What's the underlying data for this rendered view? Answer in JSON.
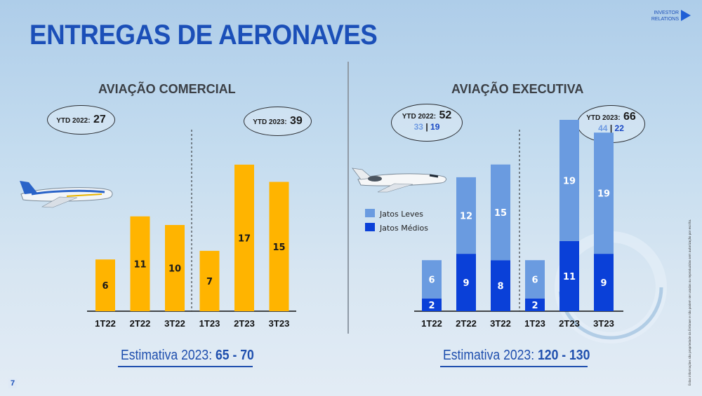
{
  "title": "ENTREGAS DE AERONAVES",
  "brand": {
    "line1": "INVESTOR",
    "line2": "RELATIONS"
  },
  "page_number": "7",
  "side_note": "Estas informações são propriedade da Embraer e não podem ser usadas ou reproduzidas sem autorização por escrito.",
  "colors": {
    "orange": "#FFB400",
    "jatos_leves": "#6A9BE0",
    "jatos_medios": "#0A40D8",
    "title_blue": "#1B4FB8"
  },
  "commercial": {
    "heading": "AVIAÇÃO COMERCIAL",
    "ytd2022": {
      "label": "YTD 2022:",
      "value": "27"
    },
    "ytd2023": {
      "label": "YTD 2023:",
      "value": "39"
    },
    "estimate": {
      "label": "Estimativa 2023:",
      "value": "65 - 70"
    }
  },
  "executive": {
    "heading": "AVIAÇÃO EXECUTIVA",
    "ytd2022": {
      "label": "YTD 2022:",
      "value": "52",
      "leves": "33",
      "sep": "|",
      "medios": "19"
    },
    "ytd2023": {
      "label": "YTD 2023:",
      "value": "66",
      "leves": "44",
      "sep": "|",
      "medios": "22"
    },
    "estimate": {
      "label": "Estimativa 2023:",
      "value": "120 - 130"
    }
  },
  "chart_data": [
    {
      "type": "bar",
      "title": "AVIAÇÃO COMERCIAL",
      "categories": [
        "1T22",
        "2T22",
        "3T22",
        "1T23",
        "2T23",
        "3T23"
      ],
      "values": [
        6,
        11,
        10,
        7,
        17,
        15
      ],
      "color": "#FFB400",
      "ylim": [
        0,
        18
      ]
    },
    {
      "type": "bar",
      "stacked": true,
      "title": "AVIAÇÃO EXECUTIVA",
      "categories": [
        "1T22",
        "2T22",
        "3T22",
        "1T23",
        "2T23",
        "3T23"
      ],
      "series": [
        {
          "name": "Jatos Médios",
          "values": [
            2,
            9,
            8,
            2,
            11,
            9
          ],
          "color": "#0A40D8"
        },
        {
          "name": "Jatos Leves",
          "values": [
            6,
            12,
            15,
            6,
            19,
            19
          ],
          "color": "#6A9BE0"
        }
      ],
      "legend": "top-left",
      "ylim": [
        0,
        30
      ]
    }
  ]
}
